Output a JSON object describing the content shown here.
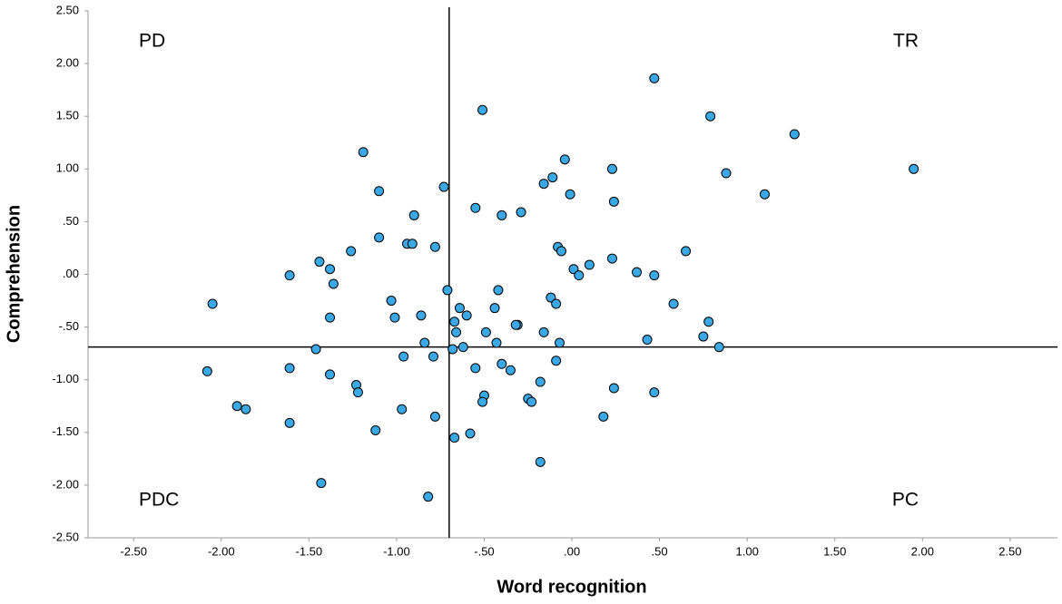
{
  "chart_data": {
    "type": "scatter",
    "xlabel": "Word recognition",
    "ylabel": "Comprehension",
    "annotations": [
      "PD",
      "TR",
      "PDC",
      "PC"
    ],
    "color": "#3aa8e4",
    "xlim": [
      -2.76,
      2.77
    ],
    "ylim": [
      -2.5,
      2.5
    ],
    "xticks": [
      {
        "value": -2.5,
        "label": "-2.50"
      },
      {
        "value": -2,
        "label": "-2.00"
      },
      {
        "value": -1.5,
        "label": "-1.50"
      },
      {
        "value": -1,
        "label": "-1.00"
      },
      {
        "value": -0.5,
        "label": "-.50"
      },
      {
        "value": 0,
        "label": ".00"
      },
      {
        "value": 0.5,
        "label": ".50"
      },
      {
        "value": 1,
        "label": "1.00"
      },
      {
        "value": 1.5,
        "label": "1.50"
      },
      {
        "value": 2,
        "label": "2.00"
      },
      {
        "value": 2.5,
        "label": "2.50"
      }
    ],
    "yticks": [
      {
        "value": 2.5,
        "label": "2.50"
      },
      {
        "value": 2,
        "label": "2.00"
      },
      {
        "value": 1.5,
        "label": "1.50"
      },
      {
        "value": 1,
        "label": "1.00"
      },
      {
        "value": 0.5,
        "label": ".50"
      },
      {
        "value": 0,
        "label": ".00"
      },
      {
        "value": -0.5,
        "label": "-.50"
      },
      {
        "value": -1,
        "label": "-1.00"
      },
      {
        "value": -1.5,
        "label": "-1.50"
      },
      {
        "value": -2,
        "label": "-2.00"
      },
      {
        "value": -2.5,
        "label": "-2.50"
      }
    ],
    "vline": -0.7,
    "hline": -0.69,
    "x": [
      0.47,
      -0.51,
      0.79,
      1.27,
      -1.19,
      -0.04,
      0.23,
      1.95,
      0.88,
      -0.11,
      -0.16,
      -0.73,
      -1.1,
      -0.01,
      1.1,
      0.24,
      -0.55,
      -0.29,
      -0.4,
      -0.9,
      -1.1,
      -0.94,
      -0.91,
      -0.78,
      -0.08,
      -0.06,
      0.65,
      -1.26,
      0.23,
      -1.44,
      0.1,
      -1.38,
      0.01,
      0.37,
      0.04,
      0.47,
      -1.61,
      -1.36,
      -0.71,
      -0.42,
      -0.12,
      -1.03,
      -2.05,
      -0.09,
      0.58,
      -0.64,
      -0.44,
      -0.86,
      -0.6,
      -1.38,
      -1.01,
      0.78,
      -0.67,
      -0.31,
      -0.32,
      -0.66,
      -0.49,
      -0.16,
      0.75,
      0.43,
      -0.84,
      -0.43,
      -0.07,
      -0.62,
      0.84,
      -1.46,
      -0.68,
      -0.96,
      -0.79,
      -0.09,
      -0.4,
      -0.35,
      -0.55,
      -1.61,
      -2.08,
      -1.38,
      -0.18,
      -1.23,
      -1.22,
      0.24,
      0.47,
      -0.5,
      -0.51,
      -0.25,
      -0.23,
      -1.91,
      -1.86,
      -0.97,
      -0.78,
      0.18,
      -1.61,
      -1.12,
      -0.58,
      -0.67,
      -0.18,
      -1.43,
      -0.82
    ],
    "values": [
      1.86,
      1.56,
      1.5,
      1.33,
      1.16,
      1.09,
      1.0,
      1.0,
      0.96,
      0.92,
      0.86,
      0.83,
      0.79,
      0.76,
      0.76,
      0.69,
      0.63,
      0.59,
      0.56,
      0.56,
      0.35,
      0.29,
      0.29,
      0.26,
      0.26,
      0.22,
      0.22,
      0.22,
      0.15,
      0.12,
      0.09,
      0.05,
      0.05,
      0.02,
      -0.01,
      -0.01,
      -0.01,
      -0.09,
      -0.15,
      -0.15,
      -0.22,
      -0.25,
      -0.28,
      -0.28,
      -0.28,
      -0.32,
      -0.32,
      -0.39,
      -0.39,
      -0.41,
      -0.41,
      -0.45,
      -0.45,
      -0.48,
      -0.48,
      -0.55,
      -0.55,
      -0.55,
      -0.59,
      -0.62,
      -0.65,
      -0.65,
      -0.65,
      -0.69,
      -0.69,
      -0.71,
      -0.71,
      -0.78,
      -0.78,
      -0.82,
      -0.85,
      -0.91,
      -0.89,
      -0.89,
      -0.92,
      -0.95,
      -1.02,
      -1.05,
      -1.12,
      -1.08,
      -1.12,
      -1.15,
      -1.21,
      -1.18,
      -1.21,
      -1.25,
      -1.28,
      -1.28,
      -1.35,
      -1.35,
      -1.41,
      -1.48,
      -1.51,
      -1.55,
      -1.78,
      -1.98,
      -2.11
    ]
  }
}
